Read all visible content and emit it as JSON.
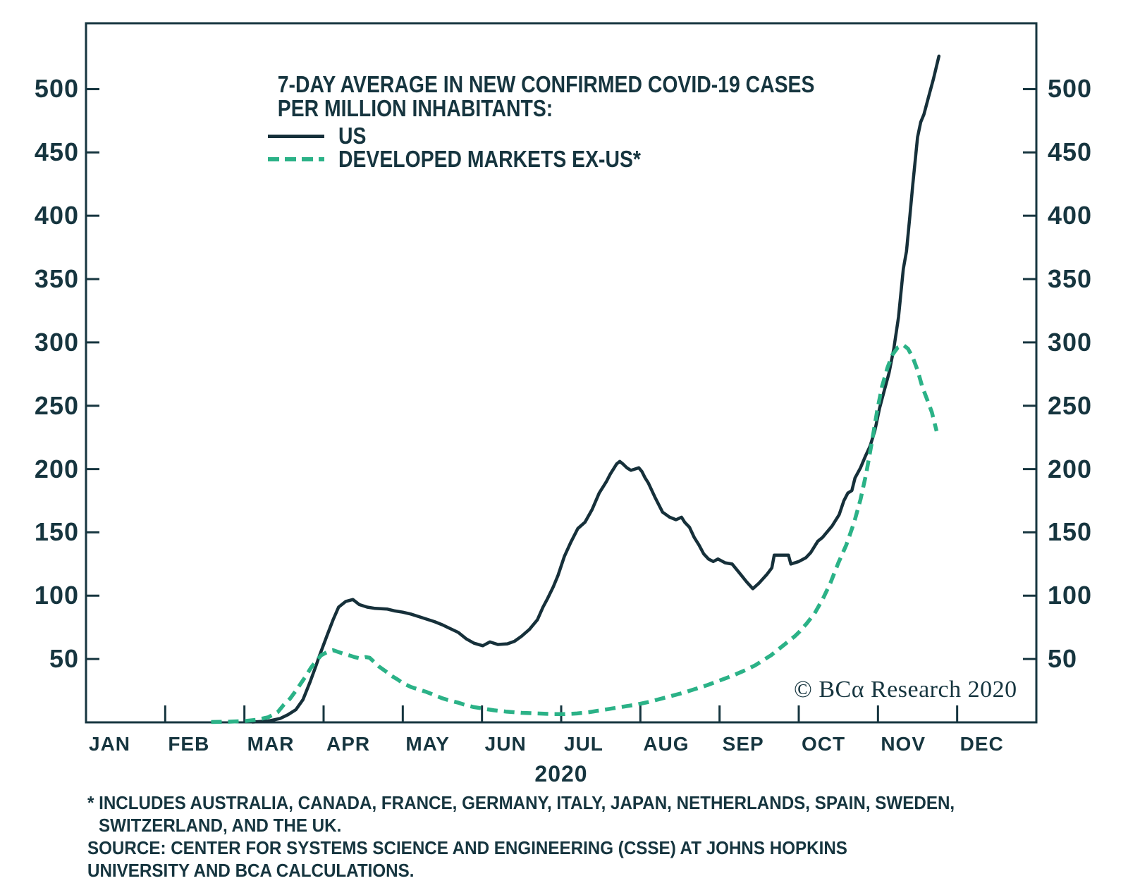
{
  "chart_data": {
    "type": "line",
    "title_lines": [
      "7-DAY AVERAGE IN NEW CONFIRMED COVID-19 CASES",
      "PER MILLION INHABITANTS:"
    ],
    "x_axis_title": "2020",
    "x_unit": "month (0 = Jan 1, 11 = Dec 1)",
    "x_tick_labels": [
      "JAN",
      "FEB",
      "MAR",
      "APR",
      "MAY",
      "JUN",
      "JUL",
      "AUG",
      "SEP",
      "OCT",
      "NOV",
      "DEC"
    ],
    "y_ticks": [
      50,
      100,
      150,
      200,
      250,
      300,
      350,
      400,
      450,
      500
    ],
    "ylim": [
      0,
      552
    ],
    "xlim_months": [
      0,
      12
    ],
    "grid": false,
    "y_axis_sides": [
      "left",
      "right"
    ],
    "legend_position": "top-left-inside",
    "colors": {
      "us_line": "#16303a",
      "dm_line": "#2bb287",
      "ink": "#16353f",
      "background": "#ffffff"
    },
    "legend": [
      {
        "label": "US",
        "style": "solid"
      },
      {
        "label": "DEVELOPED MARKETS EX-US*",
        "style": "dashed"
      }
    ],
    "series": [
      {
        "name": "US",
        "style": "solid",
        "points": [
          [
            2.1,
            0.3
          ],
          [
            2.3,
            1
          ],
          [
            2.45,
            3
          ],
          [
            2.55,
            6
          ],
          [
            2.65,
            10
          ],
          [
            2.74,
            18
          ],
          [
            2.83,
            32
          ],
          [
            2.9,
            44
          ],
          [
            2.95,
            53
          ],
          [
            3.04,
            68
          ],
          [
            3.12,
            81
          ],
          [
            3.19,
            91
          ],
          [
            3.28,
            95.5
          ],
          [
            3.37,
            97
          ],
          [
            3.45,
            93
          ],
          [
            3.55,
            91
          ],
          [
            3.65,
            90
          ],
          [
            3.8,
            89.5
          ],
          [
            3.9,
            88
          ],
          [
            4.0,
            87
          ],
          [
            4.1,
            85.5
          ],
          [
            4.2,
            83.5
          ],
          [
            4.3,
            81.5
          ],
          [
            4.4,
            79.5
          ],
          [
            4.5,
            77
          ],
          [
            4.6,
            74
          ],
          [
            4.7,
            71
          ],
          [
            4.8,
            66
          ],
          [
            4.9,
            62.5
          ],
          [
            5.01,
            60.5
          ],
          [
            5.1,
            63.5
          ],
          [
            5.2,
            61.5
          ],
          [
            5.32,
            62
          ],
          [
            5.41,
            64
          ],
          [
            5.5,
            68
          ],
          [
            5.6,
            73.5
          ],
          [
            5.7,
            81
          ],
          [
            5.77,
            91
          ],
          [
            5.83,
            98
          ],
          [
            5.9,
            107
          ],
          [
            5.96,
            116
          ],
          [
            6.04,
            131
          ],
          [
            6.12,
            142
          ],
          [
            6.21,
            153
          ],
          [
            6.3,
            158
          ],
          [
            6.39,
            168
          ],
          [
            6.48,
            181
          ],
          [
            6.57,
            190
          ],
          [
            6.62,
            196
          ],
          [
            6.7,
            204
          ],
          [
            6.74,
            206
          ],
          [
            6.78,
            204
          ],
          [
            6.83,
            201
          ],
          [
            6.88,
            199
          ],
          [
            6.93,
            200
          ],
          [
            6.98,
            201
          ],
          [
            7.02,
            198
          ],
          [
            7.06,
            193
          ],
          [
            7.1,
            189
          ],
          [
            7.19,
            177
          ],
          [
            7.28,
            166
          ],
          [
            7.37,
            162
          ],
          [
            7.45,
            160
          ],
          [
            7.52,
            162
          ],
          [
            7.56,
            158
          ],
          [
            7.62,
            154
          ],
          [
            7.68,
            146
          ],
          [
            7.74,
            140
          ],
          [
            7.8,
            133
          ],
          [
            7.86,
            129
          ],
          [
            7.92,
            127
          ],
          [
            7.98,
            129
          ],
          [
            8.07,
            126
          ],
          [
            8.16,
            125
          ],
          [
            8.25,
            118
          ],
          [
            8.34,
            111
          ],
          [
            8.42,
            105.5
          ],
          [
            8.5,
            110
          ],
          [
            8.6,
            117
          ],
          [
            8.66,
            122
          ],
          [
            8.69,
            132
          ],
          [
            8.87,
            132
          ],
          [
            8.9,
            125
          ],
          [
            9.0,
            127
          ],
          [
            9.09,
            130
          ],
          [
            9.15,
            134
          ],
          [
            9.24,
            143
          ],
          [
            9.3,
            146
          ],
          [
            9.42,
            155
          ],
          [
            9.51,
            164
          ],
          [
            9.57,
            175
          ],
          [
            9.62,
            181
          ],
          [
            9.67,
            183
          ],
          [
            9.71,
            193
          ],
          [
            9.78,
            201
          ],
          [
            9.84,
            210
          ],
          [
            9.9,
            218
          ],
          [
            9.96,
            230
          ],
          [
            10.02,
            248
          ],
          [
            10.08,
            262
          ],
          [
            10.14,
            276
          ],
          [
            10.2,
            295
          ],
          [
            10.26,
            320
          ],
          [
            10.32,
            358
          ],
          [
            10.36,
            372
          ],
          [
            10.4,
            398
          ],
          [
            10.44,
            425
          ],
          [
            10.5,
            462
          ],
          [
            10.54,
            474
          ],
          [
            10.58,
            480
          ],
          [
            10.64,
            494
          ],
          [
            10.7,
            508
          ],
          [
            10.77,
            526
          ]
        ]
      },
      {
        "name": "DEVELOPED MARKETS EX-US*",
        "style": "dashed",
        "points": [
          [
            1.58,
            0.3
          ],
          [
            1.8,
            0.5
          ],
          [
            2.0,
            1
          ],
          [
            2.15,
            2
          ],
          [
            2.3,
            4
          ],
          [
            2.42,
            8
          ],
          [
            2.5,
            14
          ],
          [
            2.58,
            19
          ],
          [
            2.65,
            25
          ],
          [
            2.77,
            36
          ],
          [
            2.84,
            43
          ],
          [
            2.9,
            48
          ],
          [
            2.97,
            53
          ],
          [
            3.03,
            55
          ],
          [
            3.08,
            56.5
          ],
          [
            3.12,
            57
          ],
          [
            3.19,
            55.5
          ],
          [
            3.26,
            54
          ],
          [
            3.32,
            53
          ],
          [
            3.39,
            51.5
          ],
          [
            3.46,
            50.5
          ],
          [
            3.53,
            51.5
          ],
          [
            3.58,
            51
          ],
          [
            3.65,
            47
          ],
          [
            3.7,
            44
          ],
          [
            3.78,
            40.5
          ],
          [
            3.85,
            37
          ],
          [
            3.93,
            34
          ],
          [
            4.0,
            31
          ],
          [
            4.1,
            28
          ],
          [
            4.2,
            26
          ],
          [
            4.3,
            24
          ],
          [
            4.4,
            21.5
          ],
          [
            4.5,
            19
          ],
          [
            4.6,
            17
          ],
          [
            4.7,
            15.5
          ],
          [
            4.8,
            13.5
          ],
          [
            4.9,
            12
          ],
          [
            5.0,
            11
          ],
          [
            5.15,
            9.5
          ],
          [
            5.3,
            8.5
          ],
          [
            5.5,
            7.5
          ],
          [
            5.7,
            7
          ],
          [
            5.9,
            6.5
          ],
          [
            6.05,
            6.5
          ],
          [
            6.2,
            7
          ],
          [
            6.35,
            8
          ],
          [
            6.5,
            9.5
          ],
          [
            6.65,
            11
          ],
          [
            6.8,
            12.5
          ],
          [
            6.95,
            14
          ],
          [
            7.1,
            16
          ],
          [
            7.25,
            18.5
          ],
          [
            7.4,
            21
          ],
          [
            7.55,
            23.5
          ],
          [
            7.7,
            26.5
          ],
          [
            7.85,
            29.5
          ],
          [
            8.0,
            33
          ],
          [
            8.15,
            36.5
          ],
          [
            8.3,
            40.5
          ],
          [
            8.45,
            45
          ],
          [
            8.55,
            49
          ],
          [
            8.65,
            53
          ],
          [
            8.75,
            58
          ],
          [
            8.85,
            63
          ],
          [
            8.95,
            68
          ],
          [
            9.0,
            71
          ],
          [
            9.1,
            78
          ],
          [
            9.2,
            86
          ],
          [
            9.3,
            97
          ],
          [
            9.4,
            110
          ],
          [
            9.5,
            126
          ],
          [
            9.6,
            140
          ],
          [
            9.7,
            158
          ],
          [
            9.78,
            176
          ],
          [
            9.85,
            196
          ],
          [
            9.92,
            220
          ],
          [
            9.99,
            246
          ],
          [
            10.05,
            265
          ],
          [
            10.12,
            280
          ],
          [
            10.18,
            290
          ],
          [
            10.25,
            296
          ],
          [
            10.32,
            298
          ],
          [
            10.38,
            295
          ],
          [
            10.44,
            288
          ],
          [
            10.5,
            278
          ],
          [
            10.56,
            265
          ],
          [
            10.62,
            255
          ],
          [
            10.68,
            245
          ],
          [
            10.74,
            230
          ]
        ]
      }
    ]
  },
  "branding": {
    "copyright": "© BCα Research 2020"
  },
  "footnotes": {
    "line1": "* INCLUDES AUSTRALIA, CANADA, FRANCE, GERMANY, ITALY, JAPAN, NETHERLANDS, SPAIN, SWEDEN,",
    "line2": "SWITZERLAND, AND THE UK.",
    "source_line1": "SOURCE: CENTER FOR SYSTEMS SCIENCE AND ENGINEERING (CSSE) AT JOHNS HOPKINS",
    "source_line2": "UNIVERSITY AND BCA CALCULATIONS."
  }
}
